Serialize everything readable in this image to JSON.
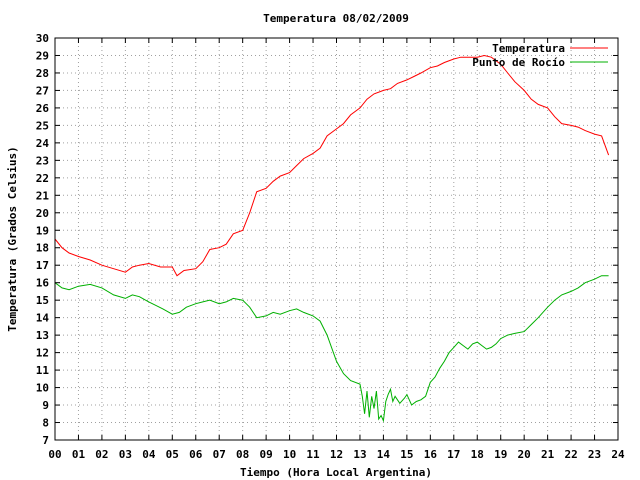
{
  "chart_data": {
    "type": "line",
    "title": "Temperatura 08/02/2009",
    "xlabel": "Tiempo (Hora Local Argentina)",
    "ylabel": "Temperatura (Grados Celsius)",
    "xlim": [
      0,
      24
    ],
    "ylim": [
      7,
      30
    ],
    "x_ticks": [
      "00",
      "01",
      "02",
      "03",
      "04",
      "05",
      "06",
      "07",
      "08",
      "09",
      "10",
      "11",
      "12",
      "13",
      "14",
      "15",
      "16",
      "17",
      "18",
      "19",
      "20",
      "21",
      "22",
      "23",
      "24"
    ],
    "y_ticks": [
      "7",
      "8",
      "9",
      "10",
      "11",
      "12",
      "13",
      "14",
      "15",
      "16",
      "17",
      "18",
      "19",
      "20",
      "21",
      "22",
      "23",
      "24",
      "25",
      "26",
      "27",
      "28",
      "29",
      "30"
    ],
    "grid": true,
    "legend_position": "top-right",
    "series": [
      {
        "name": "Temperatura",
        "color": "#ff0000",
        "x": [
          0,
          0.3,
          0.6,
          1,
          1.5,
          2,
          2.5,
          3,
          3.3,
          3.6,
          4,
          4.5,
          5,
          5.2,
          5.5,
          6,
          6.3,
          6.6,
          7,
          7.3,
          7.6,
          8,
          8.3,
          8.6,
          9,
          9.3,
          9.6,
          10,
          10.3,
          10.6,
          11,
          11.3,
          11.6,
          12,
          12.3,
          12.6,
          13,
          13.3,
          13.6,
          14,
          14.3,
          14.6,
          15,
          15.3,
          15.6,
          16,
          16.3,
          16.6,
          17,
          17.3,
          17.6,
          18,
          18.3,
          18.6,
          19,
          19.3,
          19.6,
          20,
          20.3,
          20.6,
          21,
          21.3,
          21.6,
          22,
          22.3,
          22.6,
          23,
          23.3,
          23.6
        ],
        "y": [
          18.5,
          18,
          17.7,
          17.5,
          17.3,
          17,
          16.8,
          16.6,
          16.9,
          17,
          17.1,
          16.9,
          16.9,
          16.4,
          16.7,
          16.8,
          17.2,
          17.9,
          18,
          18.2,
          18.8,
          19,
          20,
          21.2,
          21.4,
          21.8,
          22.1,
          22.3,
          22.7,
          23.1,
          23.4,
          23.7,
          24.4,
          24.8,
          25.1,
          25.6,
          26,
          26.5,
          26.8,
          27,
          27.1,
          27.4,
          27.6,
          27.8,
          28,
          28.3,
          28.4,
          28.6,
          28.8,
          28.9,
          28.9,
          28.9,
          29,
          28.9,
          28.5,
          28,
          27.5,
          27,
          26.5,
          26.2,
          26,
          25.5,
          25.1,
          25,
          24.9,
          24.7,
          24.5,
          24.4,
          23.3
        ]
      },
      {
        "name": "Punto de Rocío",
        "color": "#00b000",
        "x": [
          0,
          0.3,
          0.6,
          1,
          1.5,
          2,
          2.5,
          3,
          3.3,
          3.6,
          4,
          4.3,
          4.6,
          5,
          5.3,
          5.6,
          6,
          6.3,
          6.6,
          7,
          7.3,
          7.6,
          8,
          8.3,
          8.6,
          9,
          9.3,
          9.6,
          10,
          10.3,
          10.6,
          11,
          11.3,
          11.6,
          12,
          12.3,
          12.6,
          13,
          13.1,
          13.2,
          13.3,
          13.4,
          13.5,
          13.6,
          13.7,
          13.8,
          13.9,
          14,
          14.1,
          14.2,
          14.3,
          14.4,
          14.5,
          14.7,
          14.9,
          15,
          15.2,
          15.4,
          15.6,
          15.8,
          16,
          16.2,
          16.4,
          16.6,
          16.8,
          17,
          17.2,
          17.4,
          17.6,
          17.8,
          18,
          18.2,
          18.4,
          18.6,
          18.8,
          19,
          19.3,
          19.6,
          20,
          20.3,
          20.6,
          21,
          21.3,
          21.6,
          22,
          22.3,
          22.6,
          23,
          23.3,
          23.6
        ],
        "y": [
          16,
          15.7,
          15.6,
          15.8,
          15.9,
          15.7,
          15.3,
          15.1,
          15.3,
          15.2,
          14.9,
          14.7,
          14.5,
          14.2,
          14.3,
          14.6,
          14.8,
          14.9,
          15,
          14.8,
          14.9,
          15.1,
          15,
          14.6,
          14,
          14.1,
          14.3,
          14.2,
          14.4,
          14.5,
          14.3,
          14.1,
          13.8,
          13,
          11.5,
          10.8,
          10.4,
          10.2,
          9.5,
          8.5,
          9.8,
          8.3,
          9.5,
          8.8,
          9.8,
          8.2,
          8.4,
          8.1,
          9.2,
          9.6,
          9.9,
          9.2,
          9.5,
          9.1,
          9.4,
          9.6,
          9,
          9.2,
          9.3,
          9.5,
          10.3,
          10.6,
          11.1,
          11.5,
          12,
          12.3,
          12.6,
          12.4,
          12.2,
          12.5,
          12.6,
          12.4,
          12.2,
          12.3,
          12.5,
          12.8,
          13,
          13.1,
          13.2,
          13.6,
          14,
          14.6,
          15,
          15.3,
          15.5,
          15.7,
          16,
          16.2,
          16.4,
          16.4
        ]
      }
    ]
  }
}
